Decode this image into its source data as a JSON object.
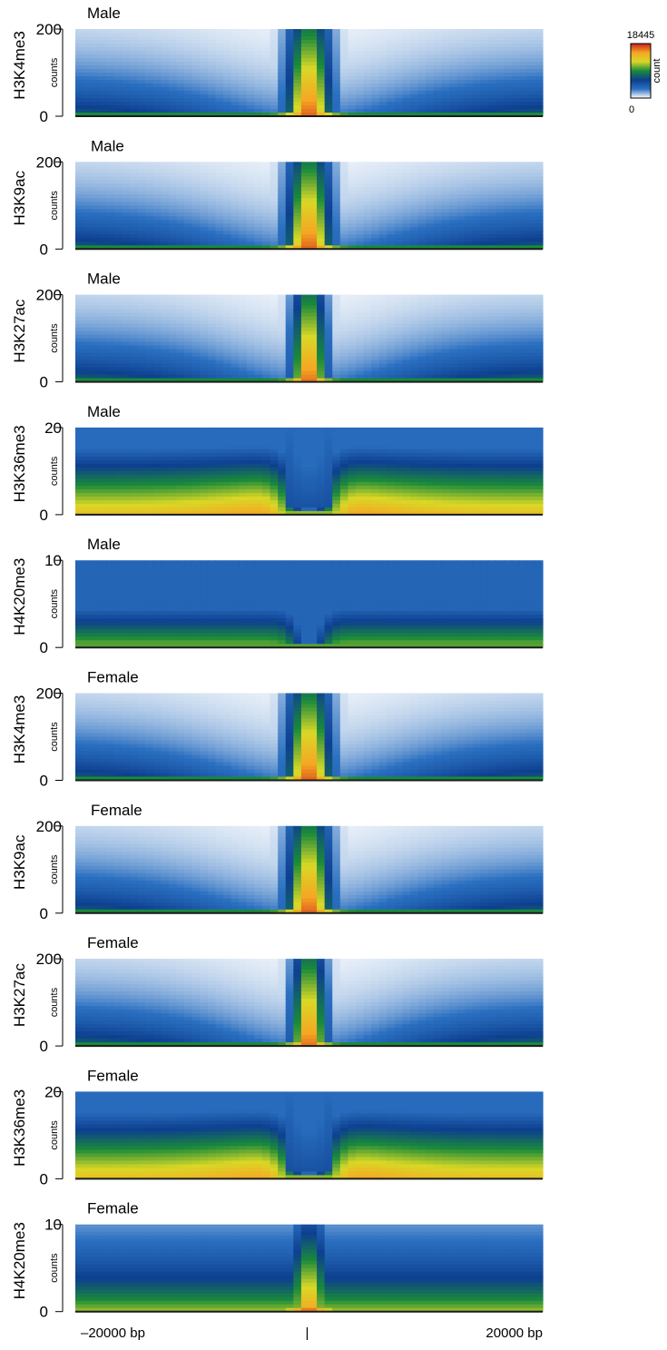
{
  "chart_data": {
    "type": "heatmap",
    "colorbar": {
      "label": "count",
      "max_label": "18445",
      "min_label": "0",
      "max": 18445,
      "min": 0,
      "colors": [
        "#ffffff",
        "#2a6fc0",
        "#0d3f8f",
        "#1a8a3a",
        "#d9d826",
        "#f5a623",
        "#c8201e"
      ]
    },
    "x_axis": {
      "tick_labels": [
        "–20000 bp",
        "|",
        "20000 bp"
      ],
      "range": [
        -20000,
        20000
      ]
    },
    "panels": [
      {
        "title": "Male",
        "mark": "H3K4me3",
        "ylabel": "counts",
        "ymax_label": "200",
        "ymin_label": "0",
        "ylim": [
          0,
          200
        ],
        "profile": "peak",
        "peak_width": 1300,
        "flank": 9000
      },
      {
        "title": "Male",
        "mark": "H3K9ac",
        "ylabel": "counts",
        "ymax_label": "200",
        "ymin_label": "0",
        "ylim": [
          0,
          200
        ],
        "profile": "peak",
        "peak_width": 1300,
        "flank": 9000
      },
      {
        "title": "Male",
        "mark": "H3K27ac",
        "ylabel": "counts",
        "ymax_label": "200",
        "ymin_label": "0",
        "ylim": [
          0,
          200
        ],
        "profile": "peak",
        "peak_width": 1000,
        "flank": 8000
      },
      {
        "title": "Male",
        "mark": "H3K36me3",
        "ylabel": "counts",
        "ymax_label": "20",
        "ymin_label": "0",
        "ylim": [
          0,
          20
        ],
        "profile": "trough",
        "peak_width": 1500,
        "flank": 6000
      },
      {
        "title": "Male",
        "mark": "H4K20me3",
        "ylabel": "counts",
        "ymax_label": "10",
        "ymin_label": "0",
        "ylim": [
          0,
          10
        ],
        "profile": "dip",
        "peak_width": 1000,
        "flank": 4000
      },
      {
        "title": "Female",
        "mark": "H3K4me3",
        "ylabel": "counts",
        "ymax_label": "200",
        "ymin_label": "0",
        "ylim": [
          0,
          200
        ],
        "profile": "peak",
        "peak_width": 1300,
        "flank": 9000
      },
      {
        "title": "Female",
        "mark": "H3K9ac",
        "ylabel": "counts",
        "ymax_label": "200",
        "ymin_label": "0",
        "ylim": [
          0,
          200
        ],
        "profile": "peak",
        "peak_width": 1300,
        "flank": 9000
      },
      {
        "title": "Female",
        "mark": "H3K27ac",
        "ylabel": "counts",
        "ymax_label": "200",
        "ymin_label": "0",
        "ylim": [
          0,
          200
        ],
        "profile": "peak",
        "peak_width": 1000,
        "flank": 8000
      },
      {
        "title": "Female",
        "mark": "H3K36me3",
        "ylabel": "counts",
        "ymax_label": "20",
        "ymin_label": "0",
        "ylim": [
          0,
          20
        ],
        "profile": "trough",
        "peak_width": 1500,
        "flank": 6000
      },
      {
        "title": "Female",
        "mark": "H4K20me3",
        "ylabel": "counts",
        "ymax_label": "10",
        "ymin_label": "0",
        "ylim": [
          0,
          10
        ],
        "profile": "peak_soft",
        "peak_width": 1200,
        "flank": 5000
      }
    ]
  }
}
